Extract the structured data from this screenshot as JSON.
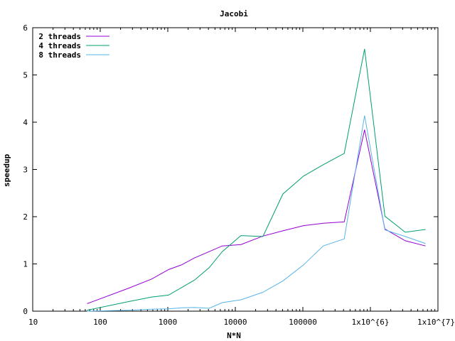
{
  "chart_data": {
    "type": "line",
    "title": "Jacobi",
    "xlabel": "N*N",
    "ylabel": "speedup",
    "xscale": "log",
    "xlim": [
      10,
      10000000
    ],
    "ylim": [
      0,
      6
    ],
    "grid": false,
    "legend_position": "top-left",
    "x_tick_labels": [
      "10",
      "100",
      "1000",
      "10000",
      "100000",
      "1x10^{6}",
      "1x10^{7}"
    ],
    "y_tick_labels": [
      "0",
      "1",
      "2",
      "3",
      "4",
      "5",
      "6"
    ],
    "y_ticks": [
      0,
      1,
      2,
      3,
      4,
      5,
      6
    ],
    "x": [
      64,
      256,
      576,
      1024,
      1600,
      2500,
      4096,
      6400,
      12100,
      25600,
      50625,
      102400,
      200704,
      409600,
      819200,
      1638400,
      3276800,
      6553600
    ],
    "series": [
      {
        "name": "2 threads",
        "color": "#9400d3",
        "values": [
          0.16,
          0.48,
          0.68,
          0.88,
          0.98,
          1.13,
          1.26,
          1.38,
          1.41,
          1.59,
          1.7,
          1.81,
          1.86,
          1.89,
          3.84,
          1.74,
          1.49,
          1.38
        ]
      },
      {
        "name": "4 threads",
        "color": "#009e73",
        "values": [
          0.02,
          0.2,
          0.3,
          0.34,
          0.5,
          0.66,
          0.92,
          1.26,
          1.6,
          1.58,
          2.48,
          2.86,
          3.1,
          3.34,
          5.55,
          2.01,
          1.67,
          1.73
        ]
      },
      {
        "name": "8 threads",
        "color": "#56b4e9",
        "values": [
          0.0,
          0.02,
          0.04,
          0.05,
          0.07,
          0.08,
          0.06,
          0.18,
          0.24,
          0.4,
          0.64,
          0.98,
          1.38,
          1.53,
          4.14,
          1.72,
          1.58,
          1.43
        ]
      }
    ]
  }
}
